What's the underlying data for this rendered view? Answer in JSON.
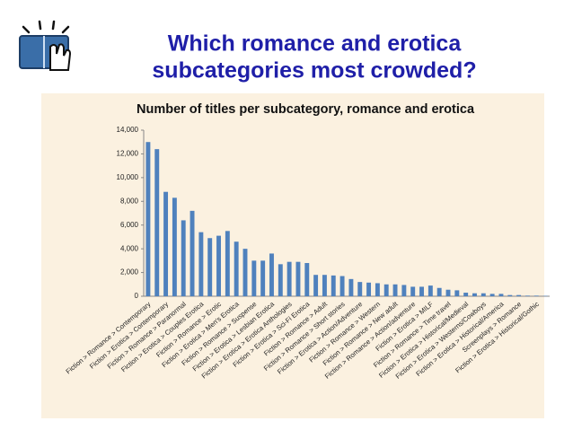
{
  "slide_title": [
    "Which romance and erotica",
    "subcategories most crowded?"
  ],
  "chart_data": {
    "type": "bar",
    "title": "Number of titles per subcategory, romance and erotica",
    "categories": [
      "Fiction > Romance > Contemporary",
      null,
      "Fiction > Erotica > Contemporary",
      null,
      "Fiction > Romance > Paranormal",
      null,
      "Fiction > Erotica > Couples Erotica",
      null,
      "Fiction > Romance > Erotic",
      null,
      "Fiction > Erotica > Men's Erotica",
      null,
      "Fiction > Romance > Suspense",
      null,
      "Fiction > Erotica > Lesbian Erotica",
      null,
      "Fiction > Erotica > Erotica Anthologies",
      null,
      "Fiction > Erotica > Sci-Fi Erotica",
      null,
      "Fiction > Romance > Adult",
      null,
      "Fiction > Romance > Short stories",
      null,
      "Fiction > Erotica > Action/Adventure",
      null,
      "Fiction > Romance > Western",
      null,
      "Fiction > Romance > New adult",
      null,
      "Fiction > Romance > Action/adventure",
      null,
      "Fiction > Erotica > MILF",
      null,
      "Fiction > Romance > Time travel",
      null,
      "Fiction > Erotica > Historical/Medieval",
      null,
      "Fiction > Erotica > Westerns/Cowboys",
      null,
      "Fiction > Erotica > Historical/America",
      null,
      "Screenplays > Romance",
      null,
      "Fiction > Erotica > Historical/Gothic",
      null
    ],
    "values": [
      13000,
      12400,
      8800,
      8300,
      6400,
      7200,
      5400,
      4900,
      5100,
      5500,
      4600,
      4000,
      3000,
      3000,
      3600,
      2700,
      2900,
      2900,
      2800,
      1800,
      1800,
      1750,
      1700,
      1450,
      1200,
      1150,
      1100,
      1000,
      1000,
      950,
      800,
      800,
      900,
      700,
      550,
      500,
      300,
      250,
      250,
      200,
      200,
      100,
      100,
      50,
      50,
      30
    ],
    "color": "#4f81bd",
    "ylim": [
      0,
      14000
    ],
    "yticks": [
      0,
      {
        "value": 2000,
        "label": "2,000"
      },
      {
        "value": 4000,
        "label": "4,000"
      },
      {
        "value": 6000,
        "label": "6,000"
      },
      {
        "value": 8000,
        "label": "8,000"
      },
      {
        "value": 10000,
        "label": "10,000"
      },
      {
        "value": 12000,
        "label": "12,000"
      },
      {
        "value": 14000,
        "label": "14,000"
      }
    ],
    "grid": false
  }
}
